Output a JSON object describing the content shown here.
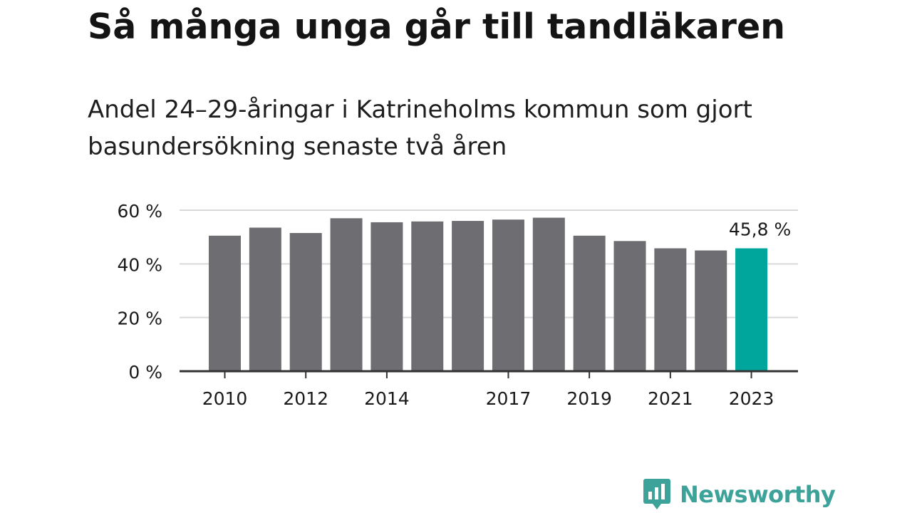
{
  "chart_data": {
    "type": "bar",
    "title": "Så många unga går till tandläkaren",
    "subtitle": "Andel 24–29-åringar i Katrineholms kommun som gjort basundersökning senaste två åren",
    "categories": [
      "2010",
      "2011",
      "2012",
      "2013",
      "2014",
      "2015",
      "2016",
      "2017",
      "2018",
      "2019",
      "2020",
      "2021",
      "2022",
      "2023"
    ],
    "values": [
      50.5,
      53.5,
      51.5,
      57.0,
      55.5,
      55.8,
      56.0,
      56.5,
      57.2,
      50.5,
      48.5,
      45.8,
      45.0,
      45.8
    ],
    "x_tick_labels": [
      "2010",
      "2012",
      "2014",
      "2017",
      "2019",
      "2021",
      "2023"
    ],
    "y_ticks": [
      0,
      20,
      40,
      60
    ],
    "y_tick_labels": [
      "0 %",
      "20 %",
      "40 %",
      "60 %"
    ],
    "ylim": [
      0,
      60
    ],
    "highlight_category": "2023",
    "highlight_label": "45,8 %",
    "xlabel": "",
    "ylabel": "",
    "grid": true,
    "colors": {
      "bar": "#6e6d72",
      "highlight": "#00a69c",
      "grid": "#d9d9d9",
      "axis": "#333333",
      "text": "#1a1a1a"
    }
  },
  "brand": {
    "name": "Newsworthy",
    "icon": "newsworthy-logo-icon",
    "color": "#3da39a"
  }
}
